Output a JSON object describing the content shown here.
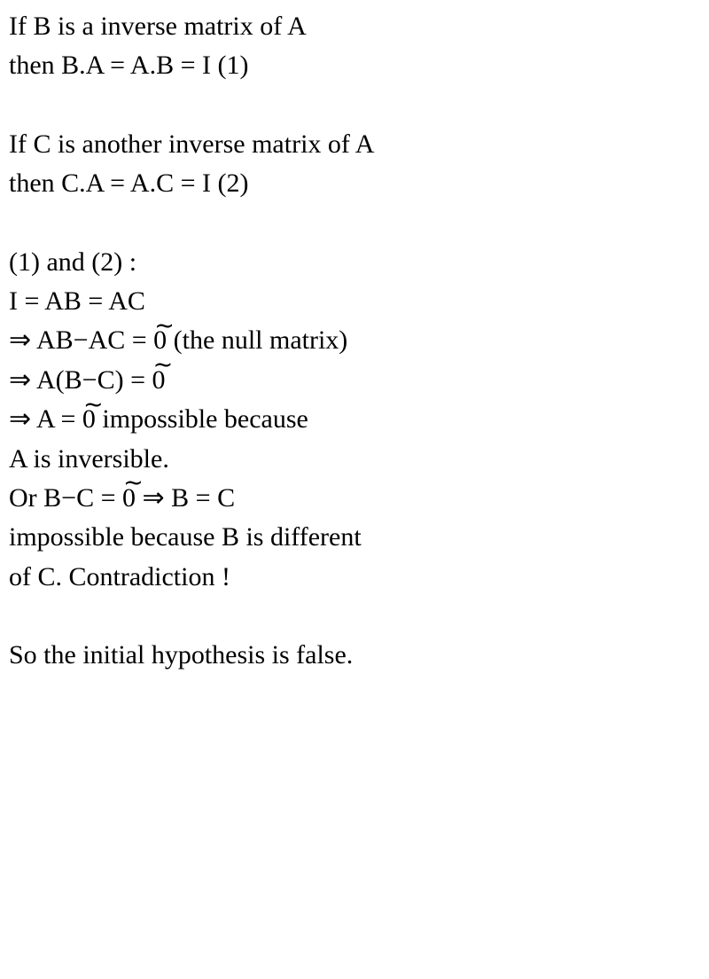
{
  "lines": {
    "l1": "If B is a inverse matrix of A",
    "l2": "then B.A = A.B = I (1)",
    "l3": "If C is another inverse matrix of A",
    "l4": "then C.A = A.C = I (2)",
    "l5": "(1) and (2) :",
    "l6": "I = AB = AC",
    "l7a": "⇒ AB−AC = ",
    "l7b": " (the null matrix)",
    "l8a": "⇒ A(B−C) = ",
    "l9a": "⇒ A = ",
    "l9b": " impossible because",
    "l10": "A is inversible.",
    "l11a": "Or B−C = ",
    "l11b": " ⇒ B = C",
    "l12": "impossible because B is different",
    "l13": "of C. Contradiction !",
    "l14": "So the initial hypothesis is false."
  },
  "zero_tilde": "0",
  "tilde": "∼",
  "style": {
    "background": "#ffffff",
    "color": "#000000",
    "fontSize": 30,
    "fontFamily": "Georgia"
  }
}
